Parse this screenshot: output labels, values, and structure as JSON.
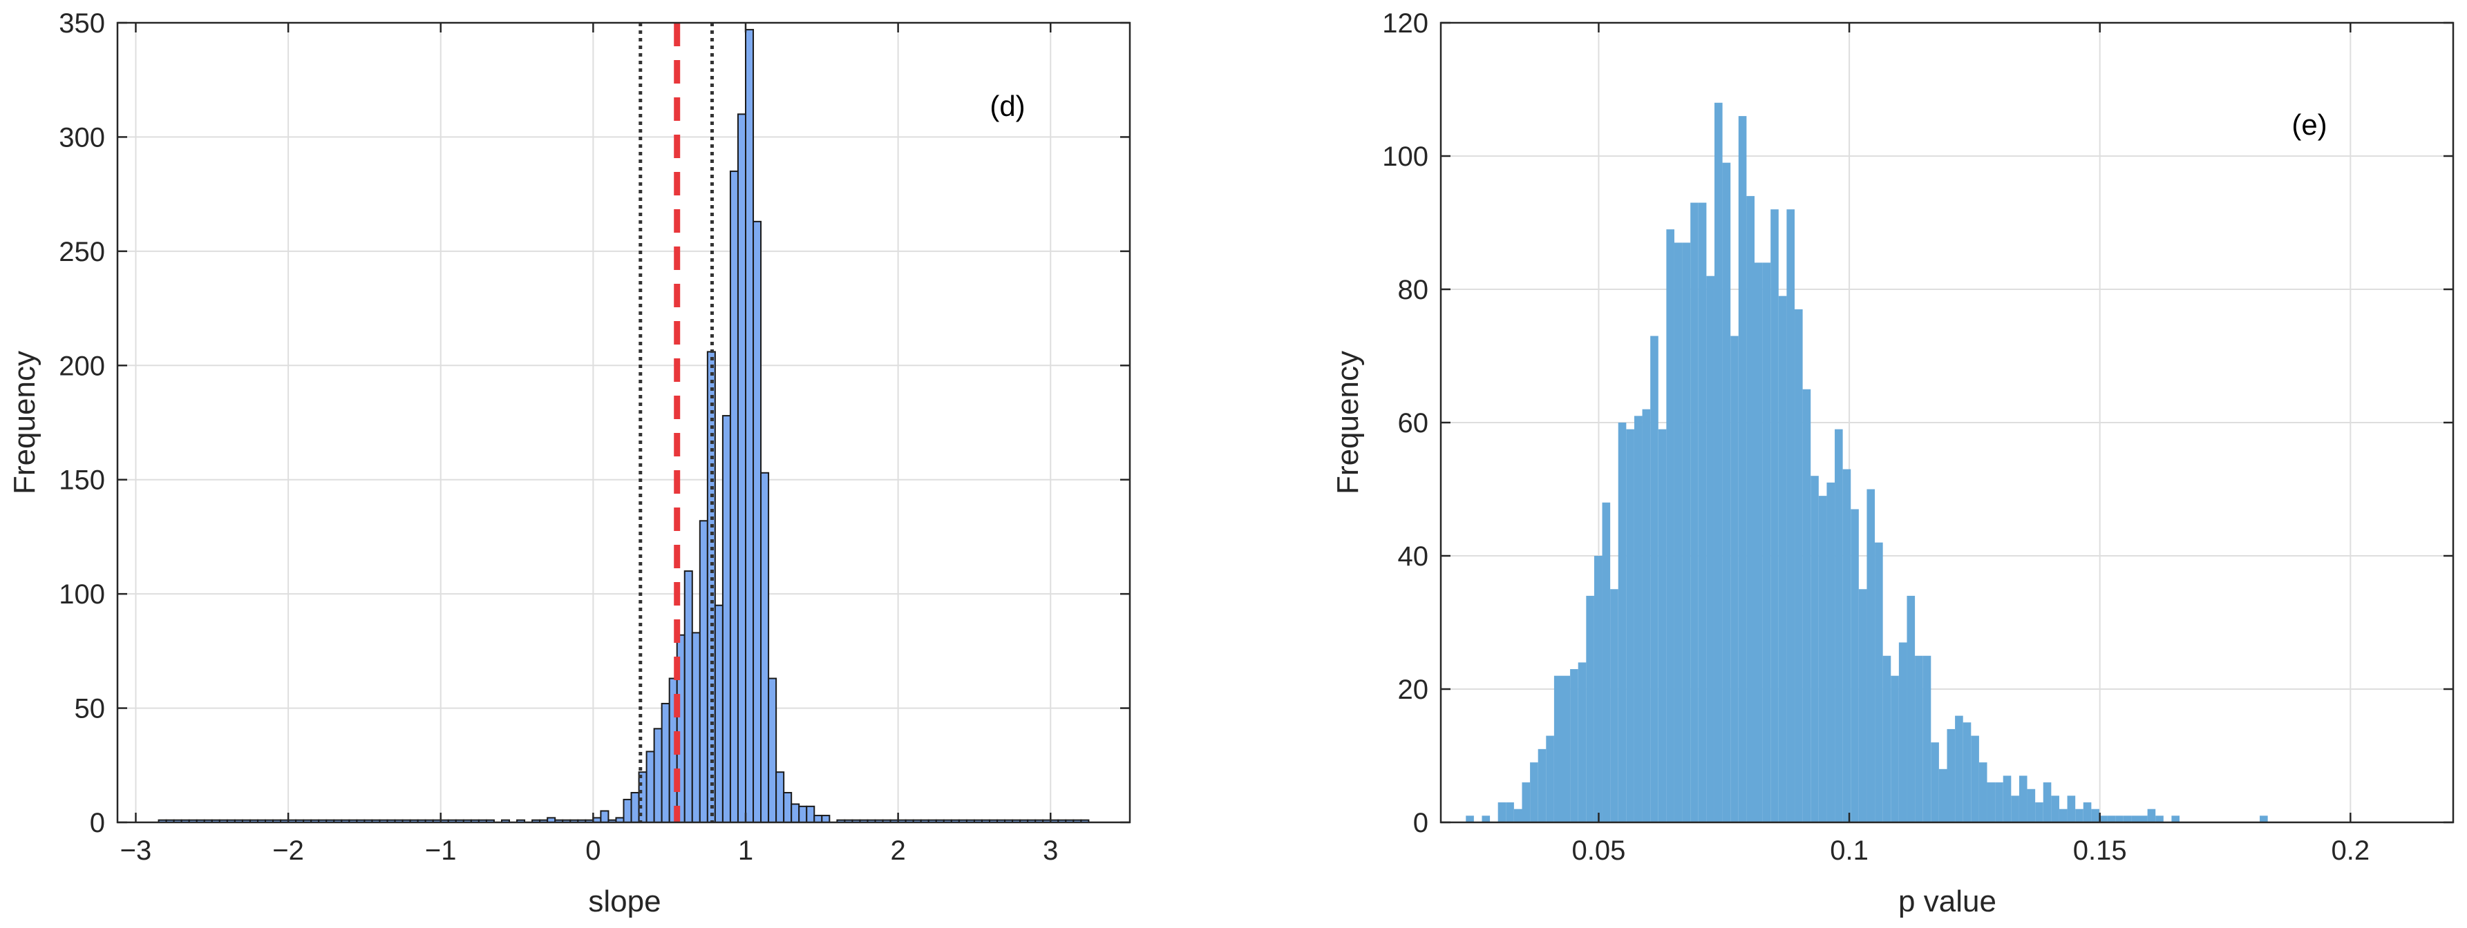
{
  "chart_data": [
    {
      "type": "bar",
      "annotation": "(d)",
      "xlabel": "slope",
      "ylabel": "Frequency",
      "xlim": [
        -3.12,
        3.52
      ],
      "ylim": [
        0,
        350
      ],
      "xticks": [
        -3,
        -2,
        -1,
        0,
        1,
        2,
        3
      ],
      "xtick_labels": [
        "−3",
        "−2",
        "−1",
        "0",
        "1",
        "2",
        "3"
      ],
      "yticks": [
        0,
        50,
        100,
        150,
        200,
        250,
        300,
        350
      ],
      "ytick_labels": [
        "0",
        "50",
        "100",
        "150",
        "200",
        "250",
        "300",
        "350"
      ],
      "grid": true,
      "bin_width": 0.05,
      "bin_start": -2.85,
      "values": [
        1,
        1,
        1,
        1,
        1,
        1,
        1,
        1,
        1,
        1,
        1,
        1,
        1,
        1,
        1,
        1,
        1,
        1,
        1,
        1,
        1,
        1,
        1,
        1,
        1,
        1,
        1,
        1,
        1,
        1,
        1,
        1,
        1,
        1,
        1,
        1,
        1,
        1,
        1,
        1,
        1,
        1,
        1,
        1,
        0,
        1,
        0,
        1,
        0,
        1,
        1,
        2,
        1,
        1,
        1,
        1,
        1,
        2,
        5,
        1,
        2,
        10,
        13,
        22,
        31,
        41,
        52,
        63,
        82,
        110,
        83,
        132,
        206,
        95,
        178,
        285,
        310,
        347,
        263,
        153,
        63,
        22,
        13,
        8,
        7,
        7,
        3,
        3,
        0,
        1,
        1,
        1,
        1,
        1,
        1,
        1,
        1,
        1,
        1,
        1,
        1,
        1,
        1,
        1,
        1,
        1,
        1,
        1,
        1,
        1,
        1,
        1,
        1,
        1,
        1,
        1,
        1,
        1,
        1,
        1,
        1,
        1
      ],
      "colors": {
        "bar_fill": "#7eaaf0",
        "bar_edge": "#1a1a1a",
        "mean_line": "#e8373b",
        "ci_line": "#333333"
      },
      "vlines": [
        {
          "x": 0.31,
          "style": "dotted",
          "color": "#333333"
        },
        {
          "x": 0.55,
          "style": "dashed",
          "color": "#e8373b"
        },
        {
          "x": 0.78,
          "style": "dotted",
          "color": "#333333"
        }
      ]
    },
    {
      "type": "bar",
      "annotation": "(e)",
      "xlabel": "p value",
      "ylabel": "Frequency",
      "xlim": [
        0.0185,
        0.2205
      ],
      "ylim": [
        0,
        120
      ],
      "xticks": [
        0.05,
        0.1,
        0.15,
        0.2
      ],
      "xtick_labels": [
        "0.05",
        "0.1",
        "0.15",
        "0.2"
      ],
      "yticks": [
        0,
        20,
        40,
        60,
        80,
        100,
        120
      ],
      "ytick_labels": [
        "0",
        "20",
        "40",
        "60",
        "80",
        "100",
        "120"
      ],
      "grid": true,
      "bin_width": 0.0016,
      "bin_start": 0.0235,
      "values": [
        1,
        0,
        1,
        0,
        3,
        3,
        2,
        6,
        9,
        11,
        13,
        22,
        22,
        23,
        24,
        34,
        40,
        48,
        35,
        60,
        59,
        61,
        62,
        73,
        59,
        89,
        87,
        87,
        93,
        93,
        82,
        108,
        99,
        73,
        106,
        94,
        84,
        84,
        92,
        79,
        92,
        77,
        65,
        52,
        49,
        51,
        59,
        53,
        47,
        35,
        50,
        42,
        25,
        22,
        27,
        34,
        25,
        25,
        12,
        8,
        14,
        16,
        15,
        13,
        9,
        6,
        6,
        7,
        4,
        7,
        5,
        3,
        6,
        4,
        2,
        4,
        2,
        3,
        2,
        1,
        1,
        1,
        1,
        1,
        1,
        2,
        1,
        0,
        1,
        0,
        0,
        0,
        0,
        0,
        0,
        0,
        0,
        0,
        0,
        1
      ],
      "colors": {
        "bar_fill": "#66a8d8"
      }
    }
  ]
}
